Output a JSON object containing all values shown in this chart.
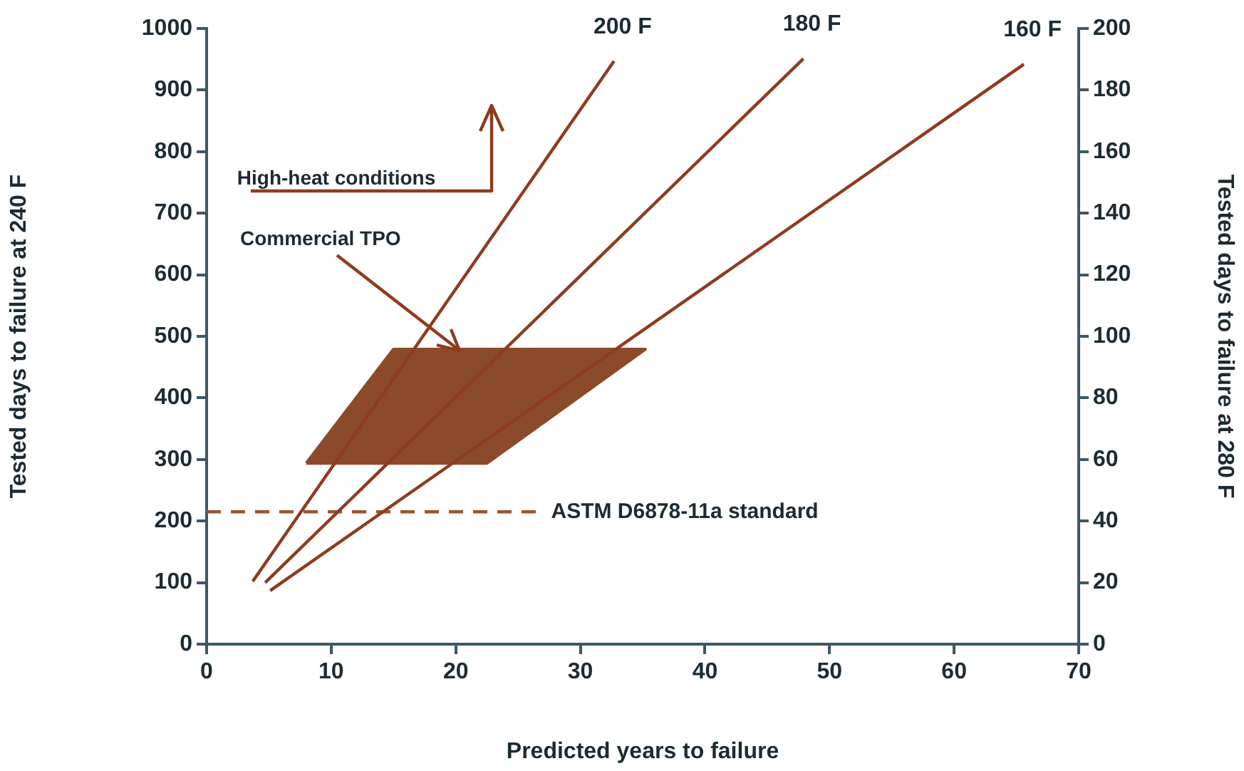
{
  "chart_data": {
    "type": "line",
    "xlabel": "Predicted years to failure",
    "ylabel": "Tested days to failure at 240 F",
    "y2label": "Tested days to failure at 280 F",
    "series": [
      {
        "name": "200 F",
        "color": "#8e3b1f",
        "x": [
          3.7,
          32.7
        ],
        "values": [
          102,
          947
        ]
      },
      {
        "name": "180 F",
        "color": "#8e3b1f",
        "x": [
          4.7,
          47.9
        ],
        "values": [
          100,
          951
        ]
      },
      {
        "name": "160 F",
        "color": "#8e3b1f",
        "x": [
          5.1,
          65.6
        ],
        "values": [
          87,
          942
        ]
      },
      {
        "color": "#8b4a2a",
        "type": "area",
        "x": [
          8,
          22.5,
          35.2,
          15,
          8
        ],
        "values": [
          294,
          294,
          479,
          479,
          294
        ]
      }
    ],
    "xlim": [
      0,
      70
    ],
    "xticks": [
      0,
      10,
      20,
      30,
      40,
      50,
      60,
      70
    ],
    "ylim": [
      0,
      1000
    ],
    "yticks": [
      0,
      100,
      200,
      300,
      400,
      500,
      600,
      700,
      800,
      900,
      1000
    ],
    "y2lim": [
      0,
      200
    ],
    "y2ticks": [
      0,
      20,
      40,
      60,
      80,
      100,
      120,
      140,
      160,
      180,
      200
    ],
    "ref_lines": [
      {
        "axis": "y",
        "value": 215,
        "label": "ASTM D6878-11a standard",
        "color": "#a0522d",
        "line_style": "dashed"
      }
    ],
    "annotations": [
      "High-heat conditions",
      {
        "text": "Commercial TPO",
        "x": 20.3,
        "y": 479
      }
    ],
    "marker": "none",
    "line_style": "solid"
  }
}
